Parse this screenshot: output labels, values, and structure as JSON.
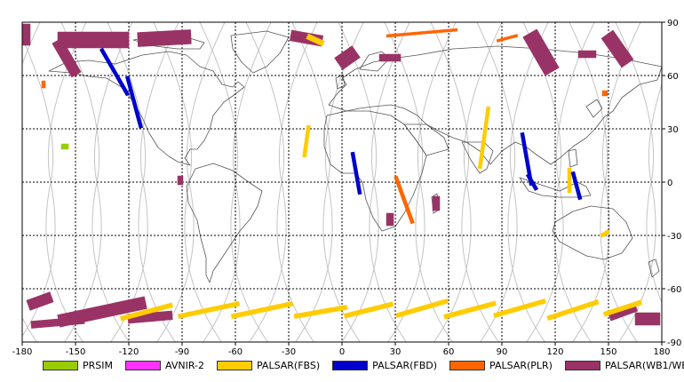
{
  "map": {
    "lon_ticks": [
      "-180",
      "-150",
      "-120",
      "-90",
      "-60",
      "-30",
      "0",
      "30",
      "60",
      "90",
      "120",
      "150",
      "180"
    ],
    "lat_ticks": [
      "90",
      "60",
      "30",
      "0",
      "-30",
      "-60",
      "-90"
    ],
    "lon_range": [
      -180,
      180
    ],
    "lat_range": [
      -90,
      90
    ],
    "grid": "dashed",
    "colors": {
      "PRSIM": "#99cc00",
      "AVNIR-2": "#ff33ff",
      "PALSAR(FBS)": "#ffcc00",
      "PALSAR(FBD)": "#0000cc",
      "PALSAR(PLR)": "#ff6600",
      "PALSAR(WB1/WB2)": "#993366"
    }
  },
  "legend": [
    {
      "label": "PRSIM",
      "color": "#99cc00"
    },
    {
      "label": "AVNIR-2",
      "color": "#ff33ff"
    },
    {
      "label": "PALSAR(FBS)",
      "color": "#ffcc00"
    },
    {
      "label": "PALSAR(FBD)",
      "color": "#0000cc"
    },
    {
      "label": "PALSAR(PLR)",
      "color": "#ff6600"
    },
    {
      "label": "PALSAR(WB1/WB2)",
      "color": "#993366"
    }
  ],
  "swaths": {
    "wb": [
      {
        "lon": -178,
        "lat": 83,
        "w": 5,
        "h": 12,
        "angle": 0
      },
      {
        "lon": -140,
        "lat": 80,
        "w": 40,
        "h": 9,
        "angle": 0
      },
      {
        "lon": -100,
        "lat": 81,
        "w": 30,
        "h": 8,
        "angle": -3
      },
      {
        "lon": -155,
        "lat": 70,
        "w": 6,
        "h": 22,
        "angle": -30
      },
      {
        "lon": -20,
        "lat": 81,
        "w": 18,
        "h": 6,
        "angle": 10
      },
      {
        "lon": 112,
        "lat": 73,
        "w": 9,
        "h": 25,
        "angle": -30
      },
      {
        "lon": 155,
        "lat": 75,
        "w": 8,
        "h": 20,
        "angle": -35
      },
      {
        "lon": 3,
        "lat": 70,
        "w": 12,
        "h": 8,
        "angle": -35
      },
      {
        "lon": 27,
        "lat": 70,
        "w": 12,
        "h": 4,
        "angle": 0
      },
      {
        "lon": 138,
        "lat": 72,
        "w": 10,
        "h": 4,
        "angle": 0
      },
      {
        "lon": -91,
        "lat": 1,
        "w": 3,
        "h": 5,
        "angle": 0
      },
      {
        "lon": 27,
        "lat": -21,
        "w": 4,
        "h": 7,
        "angle": 0
      },
      {
        "lon": 53,
        "lat": -12,
        "w": 4,
        "h": 8,
        "angle": 0
      },
      {
        "lon": -170,
        "lat": -67,
        "w": 14,
        "h": 6,
        "angle": -20
      },
      {
        "lon": -135,
        "lat": -73,
        "w": 50,
        "h": 7,
        "angle": -12
      },
      {
        "lon": -108,
        "lat": -76,
        "w": 25,
        "h": 5,
        "angle": -5
      },
      {
        "lon": -160,
        "lat": -79,
        "w": 30,
        "h": 4,
        "angle": -5
      },
      {
        "lon": 158,
        "lat": -73,
        "w": 16,
        "h": 5,
        "angle": -20
      },
      {
        "lon": 172,
        "lat": -77,
        "w": 14,
        "h": 7,
        "angle": 0
      }
    ],
    "fbs": [
      {
        "lon": -15,
        "lat": 80,
        "w": 10,
        "h": 3,
        "angle": 25
      },
      {
        "lon": -20,
        "lat": 23,
        "w": 2,
        "h": 18,
        "angle": 8
      },
      {
        "lon": 80,
        "lat": 25,
        "w": 2,
        "h": 35,
        "angle": 8
      },
      {
        "lon": 128,
        "lat": 1,
        "w": 2,
        "h": 14,
        "angle": 0
      },
      {
        "lon": -110,
        "lat": -73,
        "w": 30,
        "h": 2.5,
        "angle": -15
      },
      {
        "lon": -75,
        "lat": -72,
        "w": 35,
        "h": 2.5,
        "angle": -12
      },
      {
        "lon": -45,
        "lat": -72,
        "w": 35,
        "h": 2.5,
        "angle": -12
      },
      {
        "lon": -12,
        "lat": -73,
        "w": 30,
        "h": 2.5,
        "angle": -10
      },
      {
        "lon": 15,
        "lat": -72,
        "w": 28,
        "h": 2.5,
        "angle": -14
      },
      {
        "lon": 45,
        "lat": -71,
        "w": 30,
        "h": 2.5,
        "angle": -16
      },
      {
        "lon": 72,
        "lat": -72,
        "w": 30,
        "h": 2.5,
        "angle": -15
      },
      {
        "lon": 100,
        "lat": -71,
        "w": 30,
        "h": 2.5,
        "angle": -16
      },
      {
        "lon": 130,
        "lat": -72,
        "w": 30,
        "h": 2.5,
        "angle": -18
      },
      {
        "lon": 158,
        "lat": -71,
        "w": 22,
        "h": 2.5,
        "angle": -18
      },
      {
        "lon": 148,
        "lat": -29,
        "w": 5,
        "h": 2,
        "angle": -30
      }
    ],
    "fbd": [
      {
        "lon": -128,
        "lat": 62,
        "w": 2,
        "h": 30,
        "angle": -30
      },
      {
        "lon": -117,
        "lat": 45,
        "w": 2,
        "h": 30,
        "angle": -15
      },
      {
        "lon": 8,
        "lat": 5,
        "w": 2,
        "h": 24,
        "angle": -10
      },
      {
        "lon": 104,
        "lat": 13,
        "w": 2,
        "h": 30,
        "angle": -10
      },
      {
        "lon": 107,
        "lat": 0,
        "w": 2,
        "h": 10,
        "angle": -30
      },
      {
        "lon": 132,
        "lat": -2,
        "w": 2,
        "h": 16,
        "angle": -15
      }
    ],
    "plr": [
      {
        "lon": 45,
        "lat": 84,
        "w": 40,
        "h": 1.5,
        "angle": -5
      },
      {
        "lon": 93,
        "lat": 81,
        "w": 12,
        "h": 1.5,
        "angle": -15
      },
      {
        "lon": -168,
        "lat": 55,
        "w": 2,
        "h": 4,
        "angle": 0
      },
      {
        "lon": 35,
        "lat": -10,
        "w": 2,
        "h": 28,
        "angle": -20
      },
      {
        "lon": 148,
        "lat": 50,
        "w": 3,
        "h": 3,
        "angle": 0
      }
    ],
    "prsim": [
      {
        "lon": -156,
        "lat": 20,
        "w": 4,
        "h": 3,
        "angle": 0
      }
    ]
  }
}
